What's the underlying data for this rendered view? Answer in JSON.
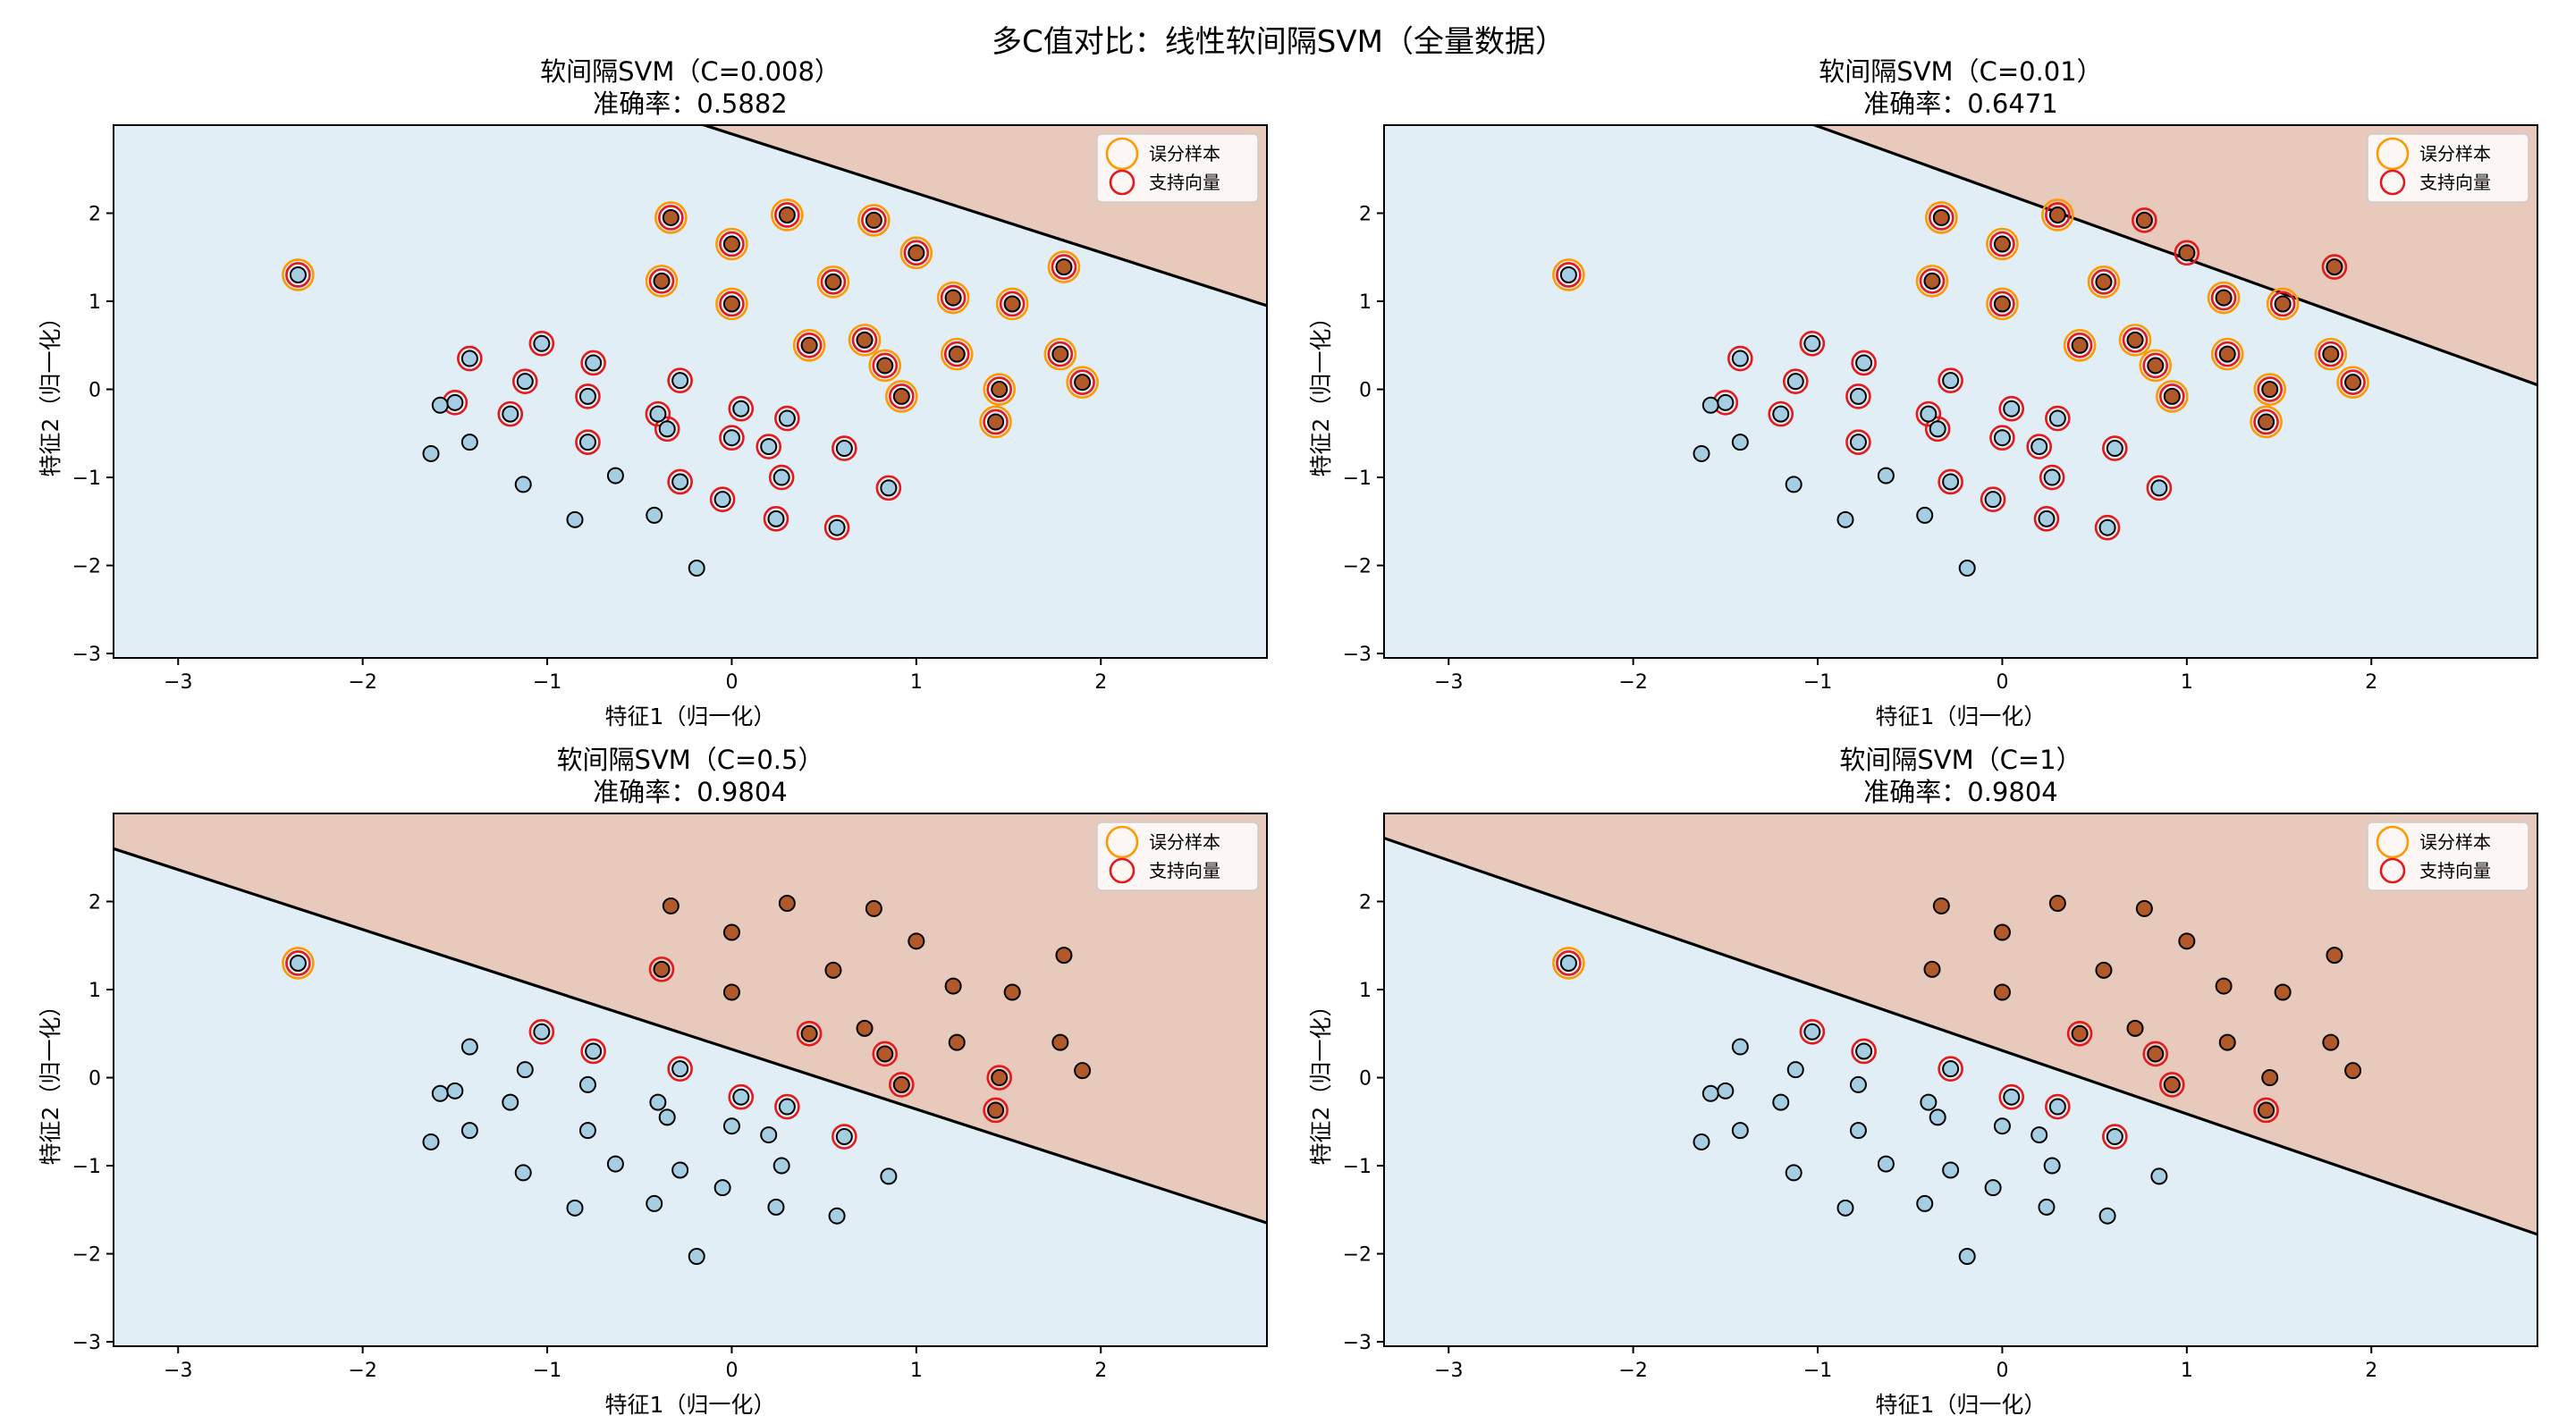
{
  "figure": {
    "suptitle": "多C值对比：线性软间隔SVM（全量数据）"
  },
  "colors": {
    "class0_point": "#a6cee3",
    "class1_point": "#b15928",
    "region0": "#e2eef6",
    "region1": "#e8cabc",
    "misclassified_ring": "#ff9900",
    "support_vector_ring": "#e31a1c",
    "boundary": "#000000"
  },
  "points_class0": [
    [
      -2.35,
      1.3
    ],
    [
      -1.63,
      -0.73
    ],
    [
      -1.58,
      -0.18
    ],
    [
      -1.5,
      -0.15
    ],
    [
      -1.42,
      0.35
    ],
    [
      -1.42,
      -0.6
    ],
    [
      -1.2,
      -0.28
    ],
    [
      -1.13,
      -1.08
    ],
    [
      -1.12,
      0.09
    ],
    [
      -1.03,
      0.52
    ],
    [
      -0.85,
      -1.48
    ],
    [
      -0.78,
      -0.6
    ],
    [
      -0.78,
      -0.08
    ],
    [
      -0.75,
      0.3
    ],
    [
      -0.63,
      -0.98
    ],
    [
      -0.42,
      -1.43
    ],
    [
      -0.4,
      -0.28
    ],
    [
      -0.35,
      -0.45
    ],
    [
      -0.28,
      0.1
    ],
    [
      -0.28,
      -1.05
    ],
    [
      -0.19,
      -2.03
    ],
    [
      -0.05,
      -1.25
    ],
    [
      0.0,
      -0.55
    ],
    [
      0.05,
      -0.22
    ],
    [
      0.2,
      -0.65
    ],
    [
      0.24,
      -1.47
    ],
    [
      0.27,
      -1.0
    ],
    [
      0.3,
      -0.33
    ],
    [
      0.57,
      -1.57
    ],
    [
      0.61,
      -0.67
    ],
    [
      0.85,
      -1.12
    ]
  ],
  "points_class1": [
    [
      -0.38,
      1.23
    ],
    [
      -0.33,
      1.95
    ],
    [
      0.0,
      1.65
    ],
    [
      0.0,
      0.97
    ],
    [
      0.3,
      1.98
    ],
    [
      0.42,
      0.5
    ],
    [
      0.55,
      1.22
    ],
    [
      0.72,
      0.56
    ],
    [
      0.77,
      1.92
    ],
    [
      0.83,
      0.27
    ],
    [
      0.92,
      -0.08
    ],
    [
      1.0,
      1.55
    ],
    [
      1.2,
      1.04
    ],
    [
      1.22,
      0.4
    ],
    [
      1.43,
      -0.37
    ],
    [
      1.45,
      0.0
    ],
    [
      1.52,
      0.97
    ],
    [
      1.78,
      0.4
    ],
    [
      1.8,
      1.39
    ],
    [
      1.9,
      0.08
    ]
  ],
  "axes_common": {
    "xlim": [
      -3.35,
      2.9
    ],
    "ylim": [
      -3.05,
      3.0
    ],
    "xticks": [
      -3,
      -2,
      -1,
      0,
      1,
      2
    ],
    "yticks": [
      -3,
      -2,
      -1,
      0,
      1,
      2
    ],
    "xlabel": "特征1（归一化）",
    "ylabel": "特征2（归一化）",
    "legend": [
      "误分样本",
      "支持向量"
    ],
    "legend_loc": "upper-right"
  },
  "chart_data": [
    {
      "type": "scatter",
      "title": "软间隔SVM（C=0.008）",
      "subtitle": "准确率：0.5882",
      "boundary_line": [
        [
          0.0,
          2.9
        ],
        [
          2.9,
          0.95
        ]
      ],
      "misclassified": [
        [
          -2.35,
          1.3
        ],
        [
          -0.38,
          1.23
        ],
        [
          -0.33,
          1.95
        ],
        [
          0.0,
          1.65
        ],
        [
          0.0,
          0.97
        ],
        [
          0.3,
          1.98
        ],
        [
          0.42,
          0.5
        ],
        [
          0.55,
          1.22
        ],
        [
          0.72,
          0.56
        ],
        [
          0.77,
          1.92
        ],
        [
          0.83,
          0.27
        ],
        [
          0.92,
          -0.08
        ],
        [
          1.0,
          1.55
        ],
        [
          1.2,
          1.04
        ],
        [
          1.22,
          0.4
        ],
        [
          1.43,
          -0.37
        ],
        [
          1.45,
          0.0
        ],
        [
          1.52,
          0.97
        ],
        [
          1.78,
          0.4
        ],
        [
          1.8,
          1.39
        ],
        [
          1.9,
          0.08
        ]
      ],
      "support_vectors": [
        [
          -2.35,
          1.3
        ],
        [
          -1.5,
          -0.15
        ],
        [
          -1.42,
          0.35
        ],
        [
          -1.2,
          -0.28
        ],
        [
          -1.12,
          0.09
        ],
        [
          -1.03,
          0.52
        ],
        [
          -0.78,
          -0.6
        ],
        [
          -0.78,
          -0.08
        ],
        [
          -0.75,
          0.3
        ],
        [
          -0.4,
          -0.28
        ],
        [
          -0.35,
          -0.45
        ],
        [
          -0.28,
          0.1
        ],
        [
          -0.28,
          -1.05
        ],
        [
          -0.05,
          -1.25
        ],
        [
          0.0,
          -0.55
        ],
        [
          0.05,
          -0.22
        ],
        [
          0.2,
          -0.65
        ],
        [
          0.24,
          -1.47
        ],
        [
          0.27,
          -1.0
        ],
        [
          0.3,
          -0.33
        ],
        [
          0.57,
          -1.57
        ],
        [
          0.61,
          -0.67
        ],
        [
          0.85,
          -1.12
        ],
        [
          -0.38,
          1.23
        ],
        [
          -0.33,
          1.95
        ],
        [
          0.0,
          1.65
        ],
        [
          0.0,
          0.97
        ],
        [
          0.3,
          1.98
        ],
        [
          0.42,
          0.5
        ],
        [
          0.55,
          1.22
        ],
        [
          0.72,
          0.56
        ],
        [
          0.77,
          1.92
        ],
        [
          0.83,
          0.27
        ],
        [
          0.92,
          -0.08
        ],
        [
          1.0,
          1.55
        ],
        [
          1.2,
          1.04
        ],
        [
          1.22,
          0.4
        ],
        [
          1.43,
          -0.37
        ],
        [
          1.45,
          0.0
        ],
        [
          1.52,
          0.97
        ],
        [
          1.78,
          0.4
        ],
        [
          1.8,
          1.39
        ],
        [
          1.9,
          0.08
        ]
      ]
    },
    {
      "type": "scatter",
      "title": "软间隔SVM（C=0.01）",
      "subtitle": "准确率：0.6471",
      "boundary_line": [
        [
          -0.95,
          2.95
        ],
        [
          2.9,
          0.05
        ]
      ],
      "misclassified": [
        [
          -2.35,
          1.3
        ],
        [
          -0.38,
          1.23
        ],
        [
          -0.33,
          1.95
        ],
        [
          0.0,
          1.65
        ],
        [
          0.0,
          0.97
        ],
        [
          0.3,
          1.98
        ],
        [
          0.42,
          0.5
        ],
        [
          0.55,
          1.22
        ],
        [
          0.72,
          0.56
        ],
        [
          0.83,
          0.27
        ],
        [
          0.92,
          -0.08
        ],
        [
          1.2,
          1.04
        ],
        [
          1.22,
          0.4
        ],
        [
          1.43,
          -0.37
        ],
        [
          1.45,
          0.0
        ],
        [
          1.52,
          0.97
        ],
        [
          1.78,
          0.4
        ],
        [
          1.9,
          0.08
        ]
      ],
      "support_vectors": [
        [
          -2.35,
          1.3
        ],
        [
          -1.5,
          -0.15
        ],
        [
          -1.42,
          0.35
        ],
        [
          -1.2,
          -0.28
        ],
        [
          -1.12,
          0.09
        ],
        [
          -1.03,
          0.52
        ],
        [
          -0.78,
          -0.6
        ],
        [
          -0.78,
          -0.08
        ],
        [
          -0.75,
          0.3
        ],
        [
          -0.4,
          -0.28
        ],
        [
          -0.35,
          -0.45
        ],
        [
          -0.28,
          0.1
        ],
        [
          -0.28,
          -1.05
        ],
        [
          -0.05,
          -1.25
        ],
        [
          0.0,
          -0.55
        ],
        [
          0.05,
          -0.22
        ],
        [
          0.2,
          -0.65
        ],
        [
          0.24,
          -1.47
        ],
        [
          0.27,
          -1.0
        ],
        [
          0.3,
          -0.33
        ],
        [
          0.57,
          -1.57
        ],
        [
          0.61,
          -0.67
        ],
        [
          0.85,
          -1.12
        ],
        [
          -0.38,
          1.23
        ],
        [
          -0.33,
          1.95
        ],
        [
          0.0,
          1.65
        ],
        [
          0.0,
          0.97
        ],
        [
          0.3,
          1.98
        ],
        [
          0.42,
          0.5
        ],
        [
          0.55,
          1.22
        ],
        [
          0.72,
          0.56
        ],
        [
          0.77,
          1.92
        ],
        [
          0.83,
          0.27
        ],
        [
          0.92,
          -0.08
        ],
        [
          1.0,
          1.55
        ],
        [
          1.2,
          1.04
        ],
        [
          1.22,
          0.4
        ],
        [
          1.43,
          -0.37
        ],
        [
          1.45,
          0.0
        ],
        [
          1.52,
          0.97
        ],
        [
          1.78,
          0.4
        ],
        [
          1.8,
          1.39
        ],
        [
          1.9,
          0.08
        ]
      ]
    },
    {
      "type": "scatter",
      "title": "软间隔SVM（C=0.5）",
      "subtitle": "准确率：0.9804",
      "boundary_line": [
        [
          -3.35,
          2.6
        ],
        [
          2.9,
          -1.65
        ]
      ],
      "misclassified": [
        [
          -2.35,
          1.3
        ]
      ],
      "support_vectors": [
        [
          -2.35,
          1.3
        ],
        [
          -1.03,
          0.52
        ],
        [
          -0.75,
          0.3
        ],
        [
          -0.28,
          0.1
        ],
        [
          0.05,
          -0.22
        ],
        [
          0.3,
          -0.33
        ],
        [
          0.61,
          -0.67
        ],
        [
          -0.38,
          1.23
        ],
        [
          0.42,
          0.5
        ],
        [
          0.83,
          0.27
        ],
        [
          0.92,
          -0.08
        ],
        [
          1.43,
          -0.37
        ],
        [
          1.45,
          0.0
        ]
      ]
    },
    {
      "type": "scatter",
      "title": "软间隔SVM（C=1）",
      "subtitle": "准确率：0.9804",
      "boundary_line": [
        [
          -3.35,
          2.72
        ],
        [
          2.9,
          -1.78
        ]
      ],
      "misclassified": [
        [
          -2.35,
          1.3
        ]
      ],
      "support_vectors": [
        [
          -2.35,
          1.3
        ],
        [
          -1.03,
          0.52
        ],
        [
          -0.75,
          0.3
        ],
        [
          -0.28,
          0.1
        ],
        [
          0.05,
          -0.22
        ],
        [
          0.3,
          -0.33
        ],
        [
          0.61,
          -0.67
        ],
        [
          0.42,
          0.5
        ],
        [
          0.83,
          0.27
        ],
        [
          0.92,
          -0.08
        ],
        [
          1.43,
          -0.37
        ]
      ]
    }
  ]
}
